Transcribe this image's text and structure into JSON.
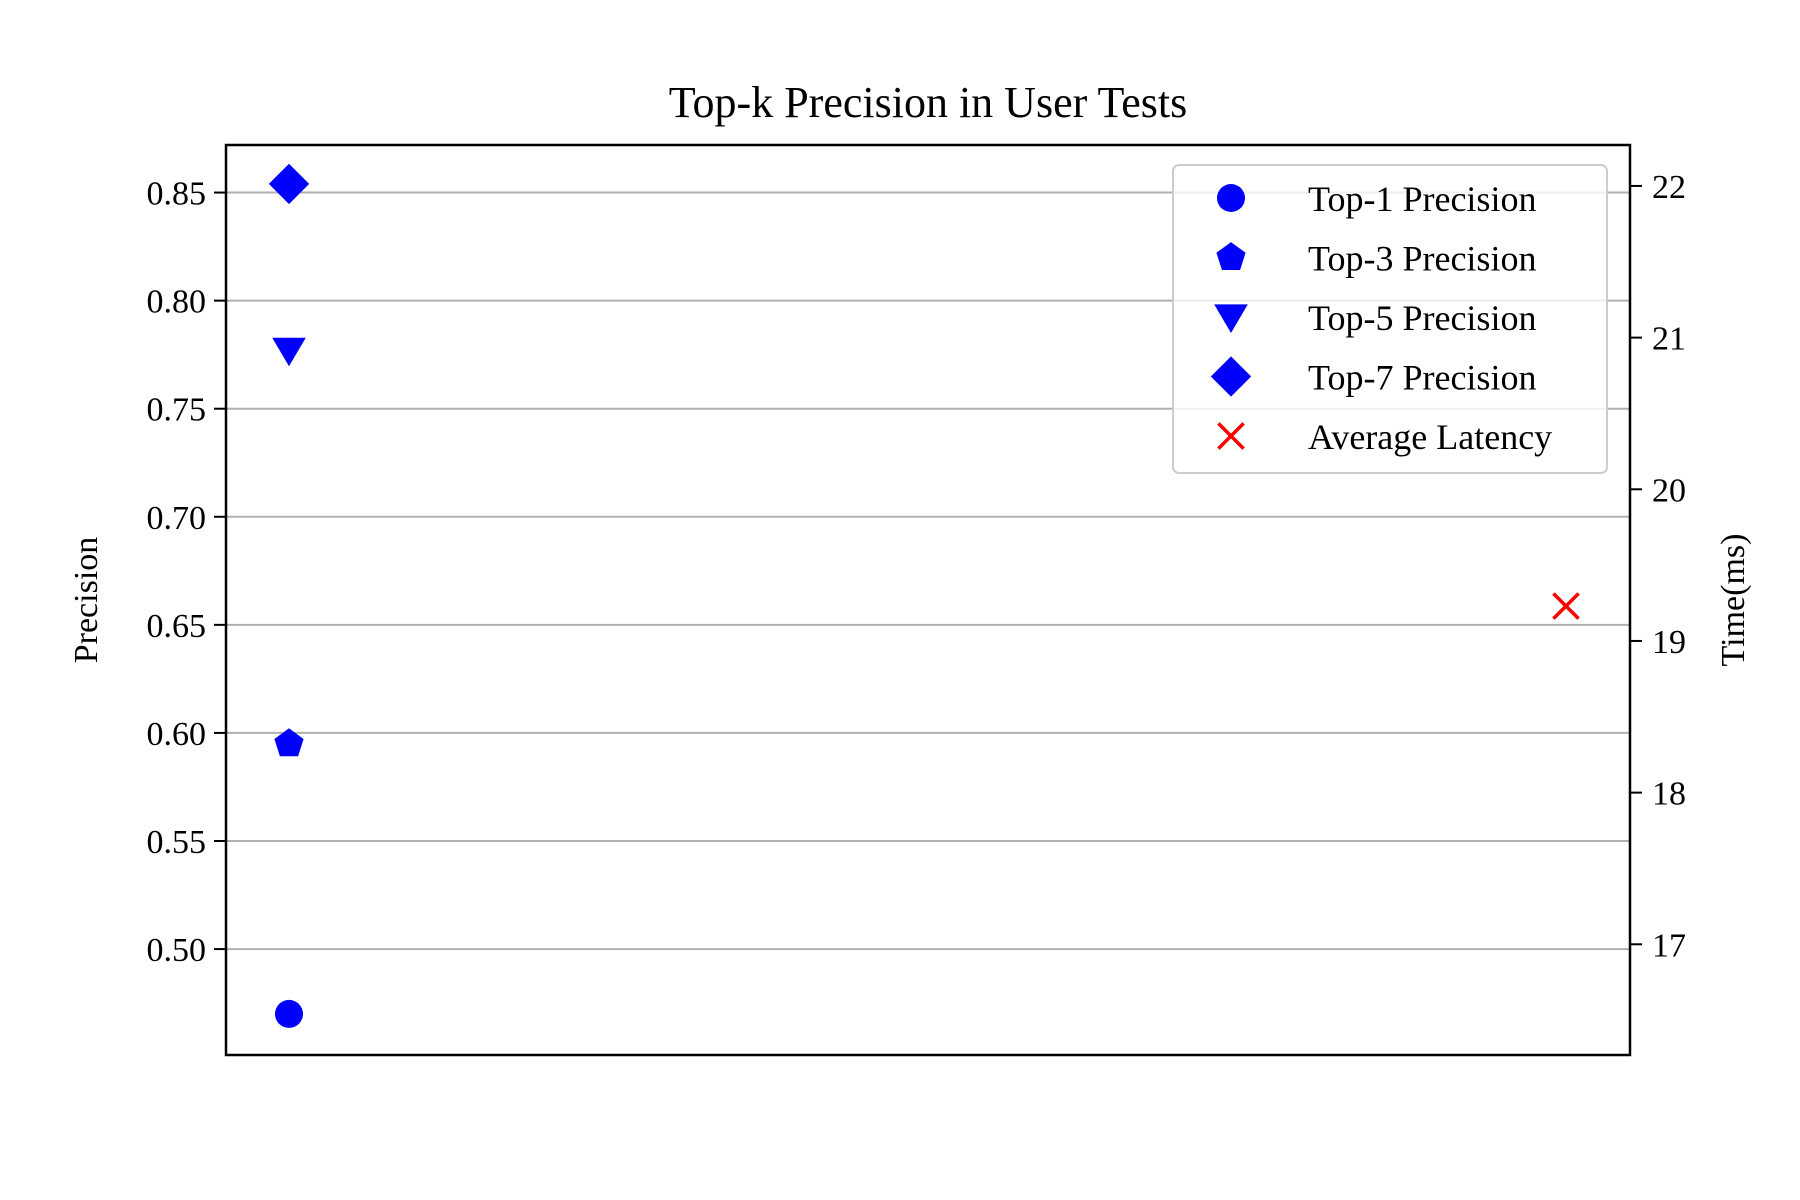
{
  "chart_data": {
    "type": "scatter",
    "title": "Top-k Precision in User Tests",
    "ylabel": "Precision",
    "y2label": "Time(ms)",
    "ylim": [
      0.451,
      0.872
    ],
    "y2lim": [
      16.27,
      22.27
    ],
    "yticks": [
      "0.50",
      "0.55",
      "0.60",
      "0.65",
      "0.70",
      "0.75",
      "0.80",
      "0.85"
    ],
    "y2ticks": [
      "17",
      "18",
      "19",
      "20",
      "21",
      "22"
    ],
    "grid": true,
    "legend_position": "top-right",
    "series": [
      {
        "name": "Top-1 Precision",
        "axis": "left",
        "marker": "circle",
        "color": "#0000ff",
        "x": 0,
        "y": 0.47
      },
      {
        "name": "Top-3 Precision",
        "axis": "left",
        "marker": "pentagon",
        "color": "#0000ff",
        "x": 0,
        "y": 0.595
      },
      {
        "name": "Top-5 Precision",
        "axis": "left",
        "marker": "triangle-down",
        "color": "#0000ff",
        "x": 0,
        "y": 0.777
      },
      {
        "name": "Top-7 Precision",
        "axis": "left",
        "marker": "diamond",
        "color": "#0000ff",
        "x": 0,
        "y": 0.854
      },
      {
        "name": "Average Latency",
        "axis": "right",
        "marker": "x",
        "color": "#ff0000",
        "x": 1,
        "y": 19.23
      }
    ]
  }
}
